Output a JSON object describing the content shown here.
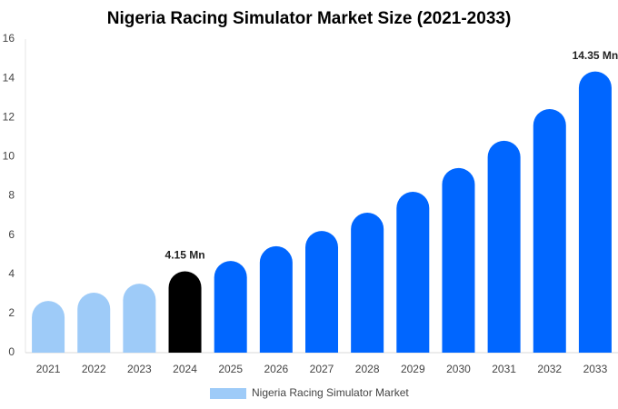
{
  "chart_data": {
    "type": "bar",
    "title": "Nigeria Racing Simulator Market Size (2021-2033)",
    "categories": [
      "2021",
      "2022",
      "2023",
      "2024",
      "2025",
      "2026",
      "2027",
      "2028",
      "2029",
      "2030",
      "2031",
      "2032",
      "2033"
    ],
    "series": [
      {
        "name": "Nigeria Racing Simulator Market",
        "color": "#9ecbf8",
        "values": [
          2.64,
          3.06,
          3.52,
          4.15,
          4.68,
          5.43,
          6.21,
          7.14,
          8.21,
          9.42,
          10.81,
          12.43,
          14.35
        ],
        "bar_colors": [
          "#9ecbf8",
          "#9ecbf8",
          "#9ecbf8",
          "#000000",
          "#0066ff",
          "#0066ff",
          "#0066ff",
          "#0066ff",
          "#0066ff",
          "#0066ff",
          "#0066ff",
          "#0066ff",
          "#0066ff"
        ],
        "value_labels": [
          null,
          null,
          null,
          "4.15 Mn",
          null,
          null,
          null,
          null,
          null,
          null,
          null,
          null,
          "14.35 Mn"
        ]
      }
    ],
    "ylim": [
      0,
      16
    ],
    "yticks": [
      0,
      2,
      4,
      6,
      8,
      10,
      12,
      14,
      16
    ],
    "grid": false,
    "legend": "bottom"
  }
}
